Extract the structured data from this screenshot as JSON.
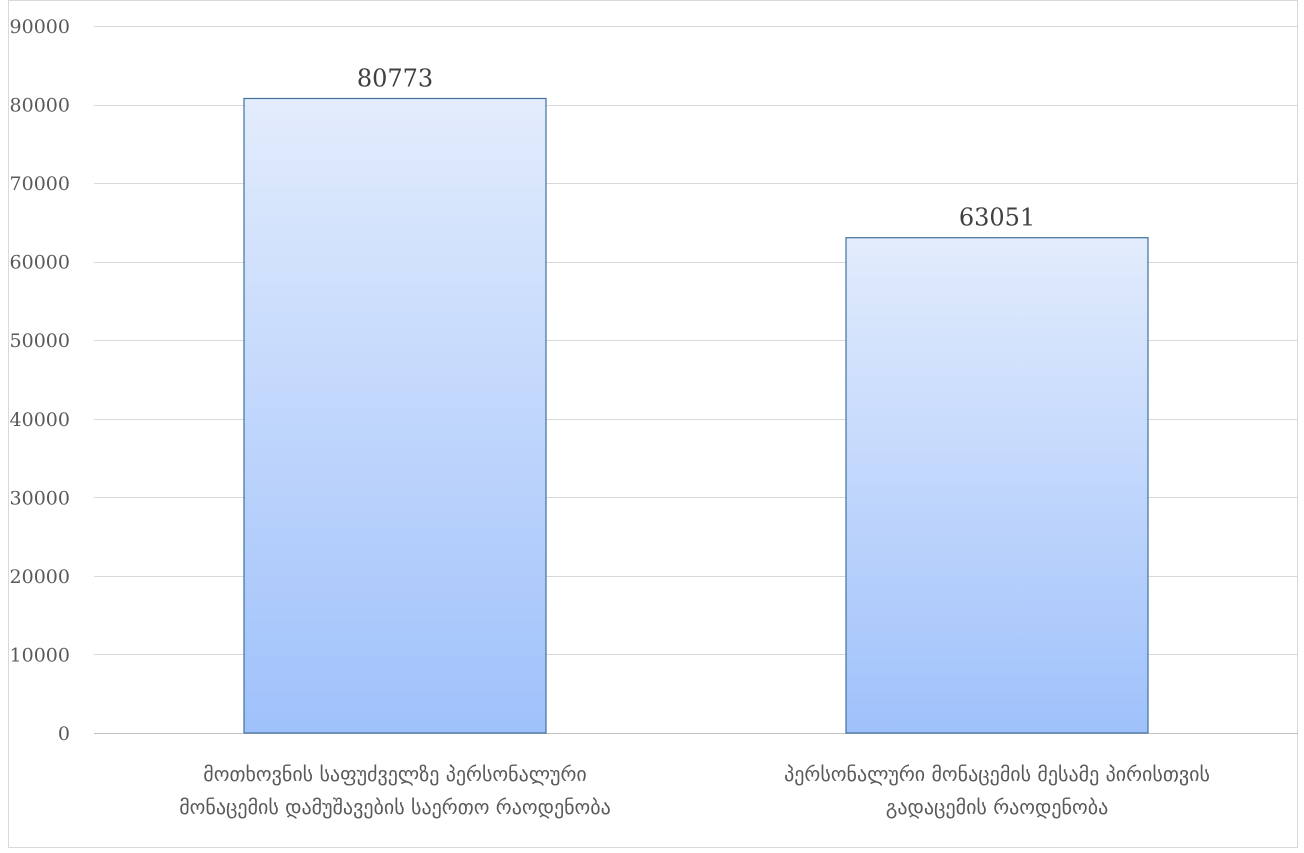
{
  "chart_data": {
    "type": "bar",
    "categories": [
      "მოთხოვნის საფუძველზე პერსონალური მონაცემის დამუშავების საერთო რაოდენობა",
      "პერსონალური მონაცემის მესამე პირისთვის გადაცემის რაოდენობა"
    ],
    "category_lines": [
      [
        "მოთხოვნის საფუძველზე პერსონალური",
        "მონაცემის დამუშავების საერთო რაოდენობა"
      ],
      [
        "პერსონალური მონაცემის მესამე პირისთვის",
        "გადაცემის რაოდენობა"
      ]
    ],
    "values": [
      80773,
      63051
    ],
    "data_labels": [
      "80773",
      "63051"
    ],
    "title": "",
    "xlabel": "",
    "ylabel": "",
    "ylim": [
      0,
      90000
    ],
    "yticks": [
      0,
      10000,
      20000,
      30000,
      40000,
      50000,
      60000,
      70000,
      80000,
      90000
    ],
    "ytick_labels": [
      "0",
      "10000",
      "20000",
      "30000",
      "40000",
      "50000",
      "60000",
      "70000",
      "80000",
      "90000"
    ],
    "grid": true,
    "legend": "none",
    "colors": {
      "bar_top": "#e2ecfc",
      "bar_bottom": "#9fc1fb",
      "bar_border": "#41719c",
      "grid": "#d9d9d9",
      "axis": "#bfbfbf"
    }
  }
}
